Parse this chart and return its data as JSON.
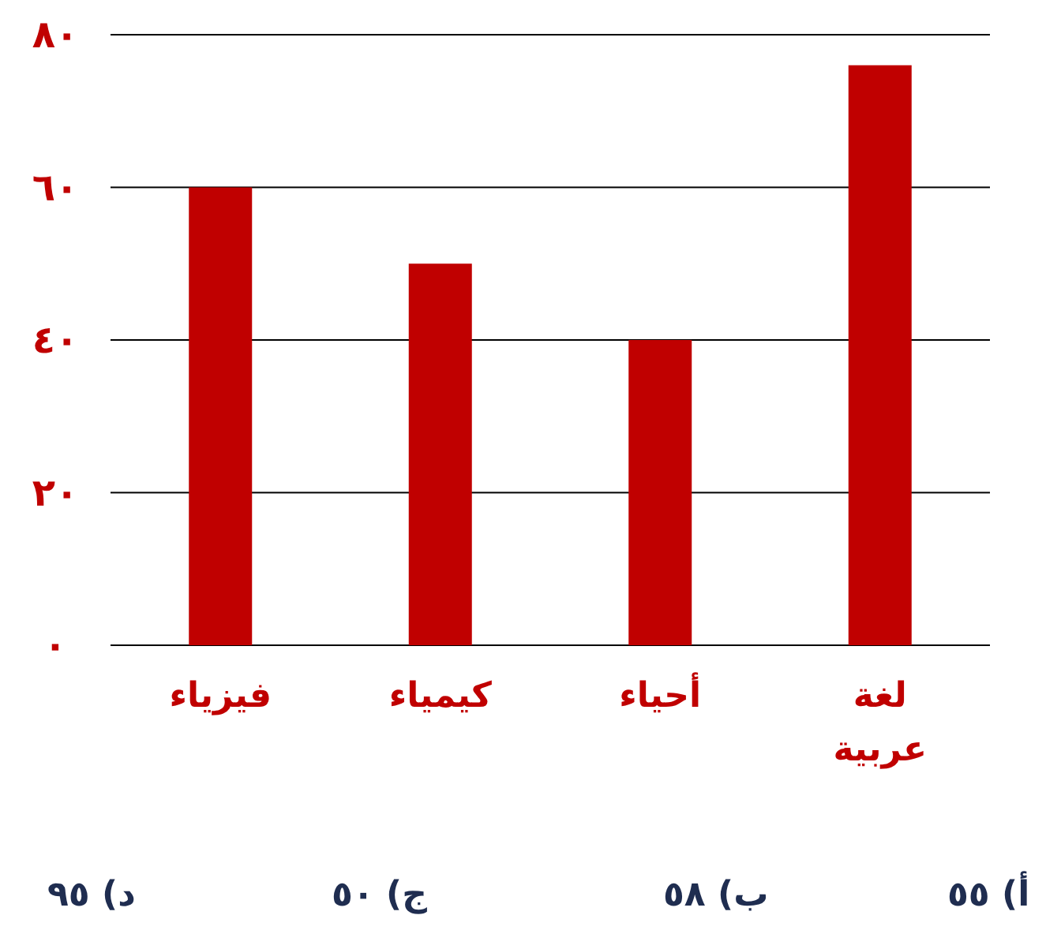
{
  "chart_data": {
    "type": "bar",
    "categories": [
      "فيزياء",
      "كيمياء",
      "أحياء",
      "لغة عربية"
    ],
    "values": [
      60,
      50,
      40,
      76
    ],
    "color": "#c00000",
    "ylim": [
      0,
      80
    ],
    "yticks": [
      {
        "value": 0,
        "label": "٠"
      },
      {
        "value": 20,
        "label": "٢٠"
      },
      {
        "value": 40,
        "label": "٤٠"
      },
      {
        "value": 60,
        "label": "٦٠"
      },
      {
        "value": 80,
        "label": "٨٠"
      }
    ],
    "grid": "y",
    "annotations": [
      "أ) ٥٥",
      "ب) ٥٨",
      "ج) ٥٠",
      "د) ٩٥"
    ]
  }
}
